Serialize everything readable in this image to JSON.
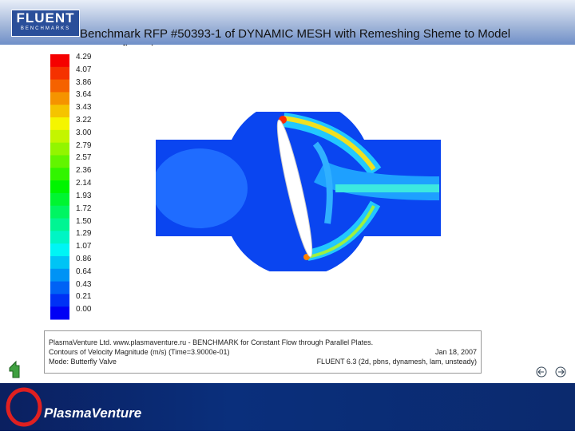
{
  "header": {
    "logo": "FLUENT",
    "logo_sub": "BENCHMARKS",
    "title_lines": [
      "Benchmark RFP #50393-1 of  DYNAMIC MESH with Remeshing  Sheme to Model",
      "a Butterfly Valve"
    ]
  },
  "colorbar": {
    "labels": [
      "4.29",
      "4.07",
      "3.86",
      "3.64",
      "3.43",
      "3.22",
      "3.00",
      "2.79",
      "2.57",
      "2.36",
      "2.14",
      "1.93",
      "1.72",
      "1.50",
      "1.29",
      "1.07",
      "0.86",
      "0.64",
      "0.43",
      "0.21",
      "0.00"
    ]
  },
  "info": {
    "line1": "PlasmaVenture Ltd. www.plasmaventure.ru - BENCHMARK for Constant Flow through Parallel Plates.",
    "line2": "Contours of Velocity Magnitude (m/s)  (Time=3.9000e-01)",
    "date": "Jan 18, 2007",
    "model": "Mode: Butterfly Valve",
    "solver": "FLUENT 6.3 (2d, pbns, dynamesh, lam, unsteady)"
  },
  "footer": {
    "brand": "PlasmaVenture"
  }
}
